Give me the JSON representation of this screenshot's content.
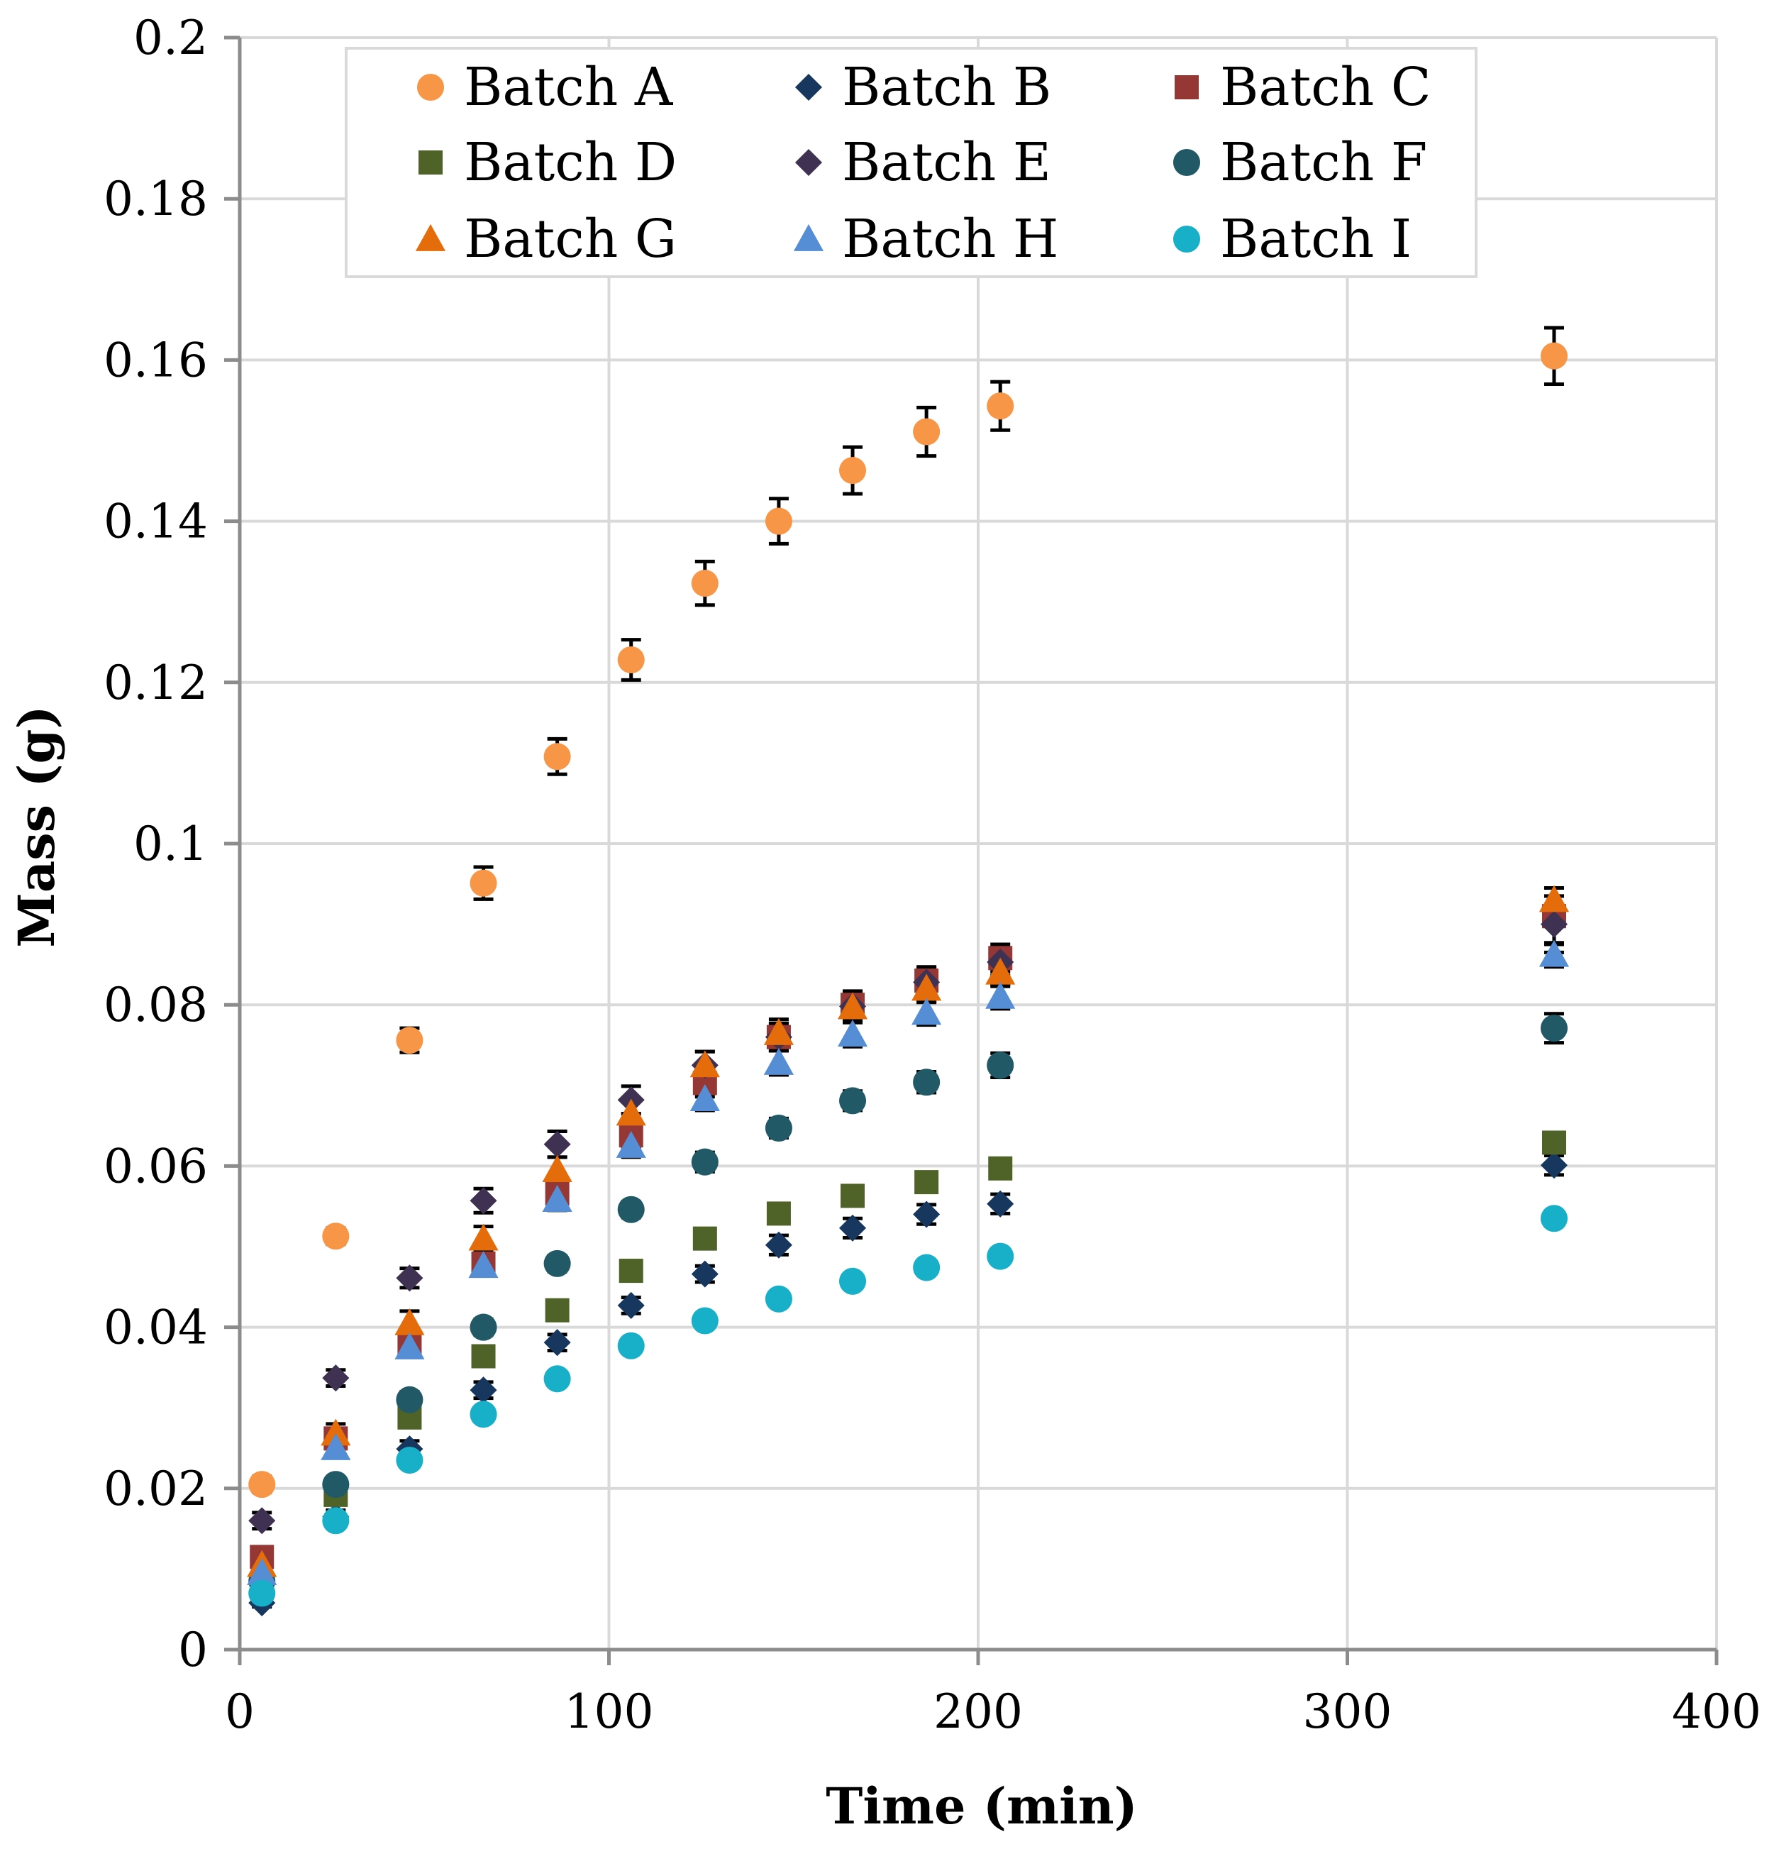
{
  "chart_data": {
    "type": "scatter",
    "title": "",
    "xlabel": "Time (min)",
    "ylabel": "Mass (g)",
    "xlim": [
      0,
      400
    ],
    "ylim": [
      0,
      0.2
    ],
    "x_ticks": [
      "0",
      "100",
      "200",
      "300",
      "400"
    ],
    "y_ticks": [
      "0",
      "0.02",
      "0.04",
      "0.06",
      "0.08",
      "0.1",
      "0.12",
      "0.14",
      "0.16",
      "0.18",
      "0.2"
    ],
    "x_tick_values": [
      0,
      100,
      200,
      300,
      400
    ],
    "y_tick_values": [
      0,
      0.02,
      0.04,
      0.06,
      0.08,
      0.1,
      0.12,
      0.14,
      0.16,
      0.18,
      0.2
    ],
    "grid": true,
    "legend_position": "top",
    "x": [
      6,
      26,
      46,
      66,
      86,
      106,
      126,
      146,
      166,
      186,
      206,
      356
    ],
    "series": [
      {
        "name": "Batch A",
        "marker": "circle",
        "color": "#F79646",
        "values": [
          0.0205,
          0.0513,
          0.0756,
          0.0951,
          0.1108,
          0.1228,
          0.1323,
          0.14,
          0.1463,
          0.1511,
          0.1543,
          0.1605
        ],
        "errors": [
          0.001,
          0.001,
          0.0015,
          0.002,
          0.0022,
          0.0025,
          0.0027,
          0.0028,
          0.0029,
          0.003,
          0.003,
          0.0035
        ]
      },
      {
        "name": "Batch B",
        "marker": "diamond",
        "color": "#17375E",
        "values": [
          0.0058,
          0.0165,
          0.0249,
          0.0322,
          0.0381,
          0.0427,
          0.0466,
          0.0502,
          0.0523,
          0.054,
          0.0553,
          0.0601
        ],
        "errors": [
          0.0005,
          0.0008,
          0.001,
          0.001,
          0.001,
          0.001,
          0.001,
          0.0012,
          0.0012,
          0.0012,
          0.0012,
          0.0012
        ]
      },
      {
        "name": "Batch C",
        "marker": "square",
        "color": "#953735",
        "values": [
          0.0115,
          0.0262,
          0.0381,
          0.0479,
          0.0566,
          0.0638,
          0.0703,
          0.076,
          0.08,
          0.083,
          0.0858,
          0.091
        ],
        "errors": [
          0.001,
          0.0012,
          0.0015,
          0.0015,
          0.0016,
          0.0017,
          0.0017,
          0.0017,
          0.0017,
          0.0017,
          0.0017,
          0.0035
        ]
      },
      {
        "name": "Batch D",
        "marker": "square",
        "color": "#4F6228",
        "values": [
          0.0082,
          0.0192,
          0.0288,
          0.0364,
          0.0421,
          0.047,
          0.051,
          0.0541,
          0.0563,
          0.058,
          0.0597,
          0.0629
        ],
        "errors": [
          0.0005,
          0.0008,
          0.001,
          0.001,
          0.001,
          0.001,
          0.001,
          0.001,
          0.001,
          0.001,
          0.001,
          0.001
        ]
      },
      {
        "name": "Batch E",
        "marker": "diamond",
        "color": "#3F3151",
        "values": [
          0.016,
          0.0337,
          0.0461,
          0.0557,
          0.0627,
          0.0682,
          0.0725,
          0.076,
          0.0798,
          0.0828,
          0.0853,
          0.09
        ],
        "errors": [
          0.001,
          0.001,
          0.0012,
          0.0015,
          0.0016,
          0.0017,
          0.0017,
          0.0017,
          0.0017,
          0.0017,
          0.0017,
          0.0035
        ]
      },
      {
        "name": "Batch F",
        "marker": "circle",
        "color": "#215967",
        "values": [
          0.0085,
          0.0205,
          0.031,
          0.04,
          0.0479,
          0.0546,
          0.0605,
          0.0647,
          0.0681,
          0.0704,
          0.0725,
          0.0771
        ],
        "errors": [
          0.0005,
          0.0008,
          0.001,
          0.001,
          0.001,
          0.001,
          0.0012,
          0.0012,
          0.0012,
          0.0013,
          0.0015,
          0.0018
        ]
      },
      {
        "name": "Batch G",
        "marker": "triangle",
        "color": "#E46C0A",
        "values": [
          0.0105,
          0.0268,
          0.0405,
          0.051,
          0.0595,
          0.0665,
          0.0725,
          0.0765,
          0.0797,
          0.082,
          0.084,
          0.093
        ],
        "errors": [
          0.001,
          0.0012,
          0.0015,
          0.0015,
          0.0016,
          0.0017,
          0.0017,
          0.0017,
          0.0017,
          0.0017,
          0.0017,
          0.0015
        ]
      },
      {
        "name": "Batch H",
        "marker": "triangle",
        "color": "#558ED5",
        "values": [
          0.0095,
          0.025,
          0.0375,
          0.0476,
          0.0558,
          0.0625,
          0.0683,
          0.0728,
          0.0763,
          0.079,
          0.081,
          0.0862
        ],
        "errors": [
          0.001,
          0.001,
          0.0012,
          0.0012,
          0.0013,
          0.0014,
          0.0014,
          0.0015,
          0.0015,
          0.0015,
          0.0015,
          0.0015
        ]
      },
      {
        "name": "Batch I",
        "marker": "circle",
        "color": "#17B0C8",
        "values": [
          0.007,
          0.016,
          0.0235,
          0.0292,
          0.0336,
          0.0377,
          0.0408,
          0.0435,
          0.0457,
          0.0474,
          0.0488,
          0.0535
        ],
        "errors": [
          0.0005,
          0.0006,
          0.0007,
          0.0008,
          0.0008,
          0.0008,
          0.0008,
          0.0008,
          0.0008,
          0.0008,
          0.0008,
          0.0008
        ]
      }
    ]
  }
}
